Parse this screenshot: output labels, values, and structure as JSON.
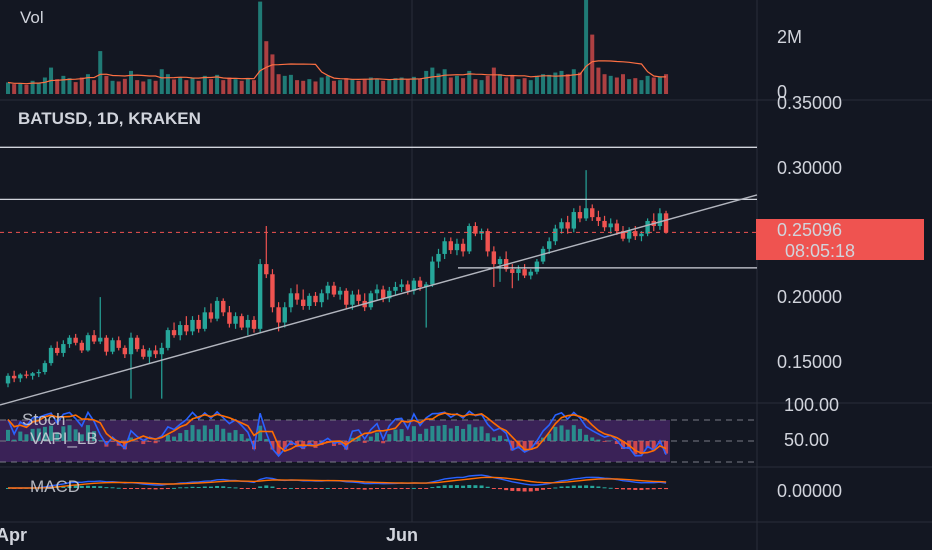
{
  "colors": {
    "background": "#131722",
    "up": "#26a69a",
    "down": "#ef5350",
    "trendline": "#b2b5be",
    "price_label_bg": "#ef5350",
    "stoch_k": "#2962ff",
    "stoch_d": "#ff6d00",
    "band_fill": "#5b2c83"
  },
  "volume_pane": {
    "title": "Vol",
    "ticks": [
      "2M",
      "0"
    ]
  },
  "price_pane": {
    "title": "BATUSD, 1D, KRAKEN",
    "ticks": [
      "0.35000",
      "0.30000",
      "0.20000",
      "0.15000"
    ],
    "last_price": "0.25096",
    "countdown": "08:05:18"
  },
  "stoch_pane": {
    "title": "Stoch",
    "subtitle": "VAPI_LB",
    "ticks": [
      "100.00",
      "50.00"
    ]
  },
  "macd_pane": {
    "title": "MACD",
    "ticks": [
      "0.00000"
    ]
  },
  "time_axis": {
    "labels": [
      "Apr",
      "Jun"
    ]
  },
  "chart_data": {
    "type": "candlestick",
    "symbol": "BATUSD",
    "timeframe": "1D",
    "exchange": "KRAKEN",
    "y_range": [
      0.115,
      0.36
    ],
    "horizontal_levels": [
      0.318,
      0.277,
      0.223
    ],
    "last_price": 0.25096,
    "ohlc": [
      [
        0.132,
        0.14,
        0.129,
        0.138
      ],
      [
        0.138,
        0.142,
        0.133,
        0.136
      ],
      [
        0.136,
        0.14,
        0.133,
        0.139
      ],
      [
        0.139,
        0.142,
        0.136,
        0.138
      ],
      [
        0.138,
        0.141,
        0.135,
        0.14
      ],
      [
        0.14,
        0.143,
        0.137,
        0.141
      ],
      [
        0.141,
        0.15,
        0.139,
        0.148
      ],
      [
        0.148,
        0.162,
        0.146,
        0.16
      ],
      [
        0.16,
        0.165,
        0.154,
        0.156
      ],
      [
        0.156,
        0.166,
        0.153,
        0.163
      ],
      [
        0.163,
        0.17,
        0.16,
        0.168
      ],
      [
        0.168,
        0.171,
        0.162,
        0.164
      ],
      [
        0.164,
        0.166,
        0.156,
        0.158
      ],
      [
        0.158,
        0.172,
        0.157,
        0.17
      ],
      [
        0.17,
        0.174,
        0.163,
        0.165
      ],
      [
        0.165,
        0.2,
        0.163,
        0.168
      ],
      [
        0.168,
        0.17,
        0.154,
        0.157
      ],
      [
        0.157,
        0.168,
        0.155,
        0.166
      ],
      [
        0.166,
        0.169,
        0.158,
        0.16
      ],
      [
        0.16,
        0.162,
        0.152,
        0.155
      ],
      [
        0.155,
        0.172,
        0.12,
        0.168
      ],
      [
        0.168,
        0.17,
        0.157,
        0.159
      ],
      [
        0.159,
        0.162,
        0.151,
        0.153
      ],
      [
        0.153,
        0.16,
        0.148,
        0.158
      ],
      [
        0.158,
        0.162,
        0.152,
        0.155
      ],
      [
        0.155,
        0.164,
        0.12,
        0.16
      ],
      [
        0.16,
        0.176,
        0.158,
        0.174
      ],
      [
        0.174,
        0.18,
        0.168,
        0.17
      ],
      [
        0.17,
        0.181,
        0.166,
        0.178
      ],
      [
        0.178,
        0.185,
        0.17,
        0.173
      ],
      [
        0.173,
        0.185,
        0.17,
        0.182
      ],
      [
        0.182,
        0.186,
        0.172,
        0.175
      ],
      [
        0.175,
        0.192,
        0.173,
        0.188
      ],
      [
        0.188,
        0.195,
        0.18,
        0.183
      ],
      [
        0.183,
        0.2,
        0.181,
        0.197
      ],
      [
        0.197,
        0.199,
        0.185,
        0.188
      ],
      [
        0.188,
        0.193,
        0.176,
        0.179
      ],
      [
        0.179,
        0.188,
        0.175,
        0.185
      ],
      [
        0.185,
        0.187,
        0.174,
        0.176
      ],
      [
        0.176,
        0.186,
        0.17,
        0.182
      ],
      [
        0.182,
        0.185,
        0.172,
        0.175
      ],
      [
        0.175,
        0.23,
        0.172,
        0.226
      ],
      [
        0.226,
        0.256,
        0.215,
        0.218
      ],
      [
        0.218,
        0.222,
        0.188,
        0.192
      ],
      [
        0.192,
        0.196,
        0.173,
        0.18
      ],
      [
        0.18,
        0.196,
        0.176,
        0.192
      ],
      [
        0.192,
        0.207,
        0.188,
        0.203
      ],
      [
        0.203,
        0.21,
        0.194,
        0.198
      ],
      [
        0.198,
        0.206,
        0.19,
        0.193
      ],
      [
        0.193,
        0.203,
        0.19,
        0.201
      ],
      [
        0.201,
        0.204,
        0.193,
        0.196
      ],
      [
        0.196,
        0.206,
        0.192,
        0.203
      ],
      [
        0.203,
        0.212,
        0.198,
        0.209
      ],
      [
        0.209,
        0.212,
        0.2,
        0.202
      ],
      [
        0.202,
        0.208,
        0.198,
        0.205
      ],
      [
        0.205,
        0.207,
        0.191,
        0.194
      ],
      [
        0.194,
        0.205,
        0.19,
        0.202
      ],
      [
        0.202,
        0.206,
        0.194,
        0.197
      ],
      [
        0.197,
        0.203,
        0.189,
        0.192
      ],
      [
        0.192,
        0.205,
        0.19,
        0.203
      ],
      [
        0.203,
        0.21,
        0.198,
        0.206
      ],
      [
        0.206,
        0.209,
        0.196,
        0.199
      ],
      [
        0.199,
        0.208,
        0.196,
        0.205
      ],
      [
        0.205,
        0.212,
        0.202,
        0.208
      ],
      [
        0.208,
        0.214,
        0.204,
        0.21
      ],
      [
        0.21,
        0.213,
        0.202,
        0.205
      ],
      [
        0.205,
        0.215,
        0.202,
        0.213
      ],
      [
        0.213,
        0.216,
        0.205,
        0.208
      ],
      [
        0.208,
        0.212,
        0.176,
        0.21
      ],
      [
        0.21,
        0.232,
        0.208,
        0.228
      ],
      [
        0.228,
        0.238,
        0.223,
        0.234
      ],
      [
        0.234,
        0.247,
        0.23,
        0.244
      ],
      [
        0.244,
        0.247,
        0.234,
        0.237
      ],
      [
        0.237,
        0.246,
        0.233,
        0.242
      ],
      [
        0.242,
        0.246,
        0.232,
        0.236
      ],
      [
        0.236,
        0.258,
        0.234,
        0.256
      ],
      [
        0.256,
        0.259,
        0.248,
        0.25
      ],
      [
        0.25,
        0.254,
        0.245,
        0.252
      ],
      [
        0.252,
        0.254,
        0.232,
        0.236
      ],
      [
        0.236,
        0.24,
        0.208,
        0.226
      ],
      [
        0.226,
        0.232,
        0.212,
        0.23
      ],
      [
        0.23,
        0.236,
        0.22,
        0.222
      ],
      [
        0.222,
        0.226,
        0.207,
        0.219
      ],
      [
        0.219,
        0.225,
        0.213,
        0.222
      ],
      [
        0.222,
        0.226,
        0.215,
        0.217
      ],
      [
        0.217,
        0.222,
        0.214,
        0.22
      ],
      [
        0.22,
        0.23,
        0.218,
        0.228
      ],
      [
        0.228,
        0.24,
        0.226,
        0.238
      ],
      [
        0.238,
        0.247,
        0.234,
        0.244
      ],
      [
        0.244,
        0.257,
        0.241,
        0.254
      ],
      [
        0.254,
        0.262,
        0.25,
        0.259
      ],
      [
        0.259,
        0.264,
        0.25,
        0.254
      ],
      [
        0.254,
        0.27,
        0.251,
        0.267
      ],
      [
        0.267,
        0.272,
        0.259,
        0.262
      ],
      [
        0.262,
        0.3,
        0.26,
        0.27
      ],
      [
        0.27,
        0.273,
        0.26,
        0.263
      ],
      [
        0.263,
        0.268,
        0.256,
        0.26
      ],
      [
        0.26,
        0.264,
        0.252,
        0.255
      ],
      [
        0.255,
        0.262,
        0.25,
        0.258
      ],
      [
        0.258,
        0.261,
        0.249,
        0.252
      ],
      [
        0.252,
        0.256,
        0.244,
        0.246
      ],
      [
        0.246,
        0.255,
        0.243,
        0.252
      ],
      [
        0.252,
        0.256,
        0.245,
        0.248
      ],
      [
        0.248,
        0.252,
        0.244,
        0.25
      ],
      [
        0.25,
        0.262,
        0.248,
        0.26
      ],
      [
        0.26,
        0.266,
        0.252,
        0.256
      ],
      [
        0.256,
        0.27,
        0.253,
        0.266
      ],
      [
        0.266,
        0.268,
        0.25,
        0.251
      ]
    ],
    "volume": [
      0.35,
      0.3,
      0.32,
      0.28,
      0.4,
      0.33,
      0.5,
      0.8,
      0.45,
      0.55,
      0.48,
      0.36,
      0.5,
      0.6,
      0.42,
      1.3,
      0.55,
      0.4,
      0.38,
      0.46,
      0.7,
      0.42,
      0.38,
      0.45,
      0.4,
      0.75,
      0.6,
      0.44,
      0.5,
      0.42,
      0.48,
      0.4,
      0.55,
      0.45,
      0.58,
      0.42,
      0.5,
      0.45,
      0.4,
      0.48,
      0.42,
      2.8,
      1.6,
      1.2,
      0.6,
      0.55,
      0.58,
      0.42,
      0.4,
      0.45,
      0.38,
      0.5,
      0.55,
      0.4,
      0.42,
      0.48,
      0.45,
      0.4,
      0.44,
      0.5,
      0.46,
      0.4,
      0.42,
      0.48,
      0.5,
      0.44,
      0.52,
      0.46,
      0.7,
      0.8,
      0.62,
      0.75,
      0.5,
      0.55,
      0.48,
      0.7,
      0.45,
      0.42,
      0.55,
      0.8,
      0.6,
      0.5,
      0.55,
      0.45,
      0.48,
      0.42,
      0.55,
      0.6,
      0.58,
      0.65,
      0.7,
      0.6,
      0.75,
      0.65,
      2.9,
      1.8,
      0.8,
      0.6,
      0.55,
      0.5,
      0.6,
      0.45,
      0.48,
      0.42,
      0.55,
      0.5,
      0.52,
      0.6
    ]
  }
}
